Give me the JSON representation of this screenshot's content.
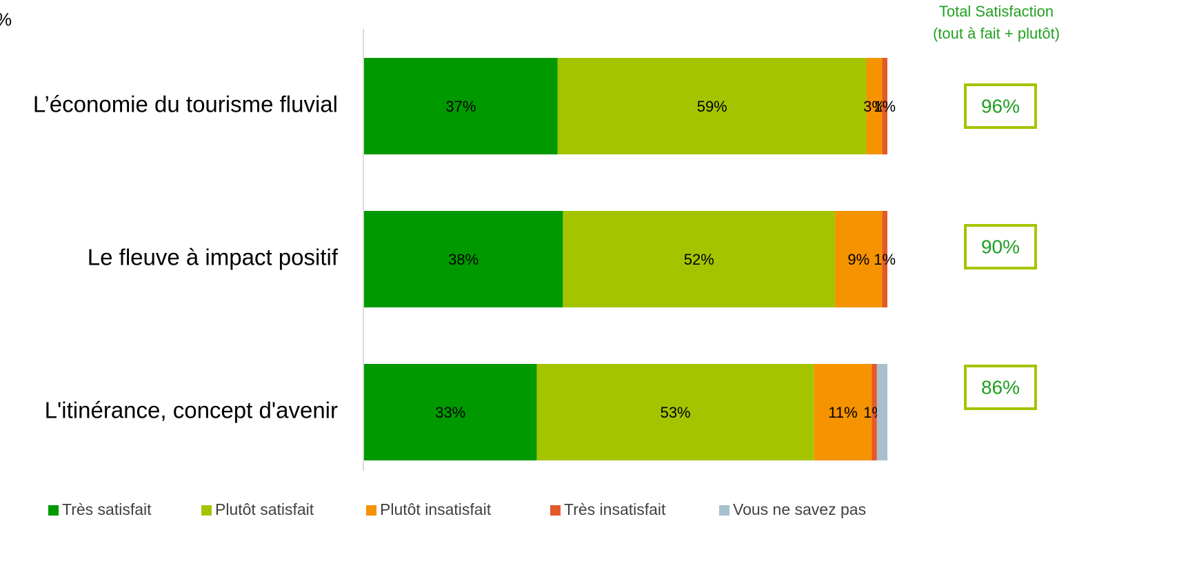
{
  "chart_data": {
    "type": "stacked-barh",
    "title": "%",
    "categories": [
      "L’économie du tourisme fluvial",
      "Le fleuve à impact positif",
      "L'itinérance, concept d'avenir"
    ],
    "xlim": [
      0,
      100
    ],
    "series": [
      {
        "name": "Très satisfait",
        "color": "#009900",
        "values": [
          37,
          38,
          33
        ],
        "value_labels": [
          "37%",
          "38%",
          "33%"
        ]
      },
      {
        "name": "Plutôt satisfait",
        "color": "#a5c400",
        "values": [
          59,
          52,
          53
        ],
        "value_labels": [
          "59%",
          "52%",
          "53%"
        ]
      },
      {
        "name": "Plutôt insatisfait",
        "color": "#f59300",
        "values": [
          3,
          9,
          11
        ],
        "value_labels": [
          "3%",
          "9%",
          "11%"
        ]
      },
      {
        "name": "Très insatisfait",
        "color": "#e35a28",
        "values": [
          1,
          1,
          1
        ],
        "value_labels": [
          "1%",
          "1%",
          "1%"
        ]
      },
      {
        "name": "Vous ne savez pas",
        "color": "#a8bfce",
        "values": [
          0,
          0,
          2
        ],
        "value_labels": [
          null,
          null,
          null
        ]
      }
    ],
    "totals": {
      "title": [
        "Total  Satisfaction",
        "(tout à fait + plutôt)"
      ],
      "values": [
        96,
        90,
        86
      ],
      "value_labels": [
        "96%",
        "90%",
        "86%"
      ],
      "color": "#a5c400"
    },
    "legend": "bottom"
  }
}
